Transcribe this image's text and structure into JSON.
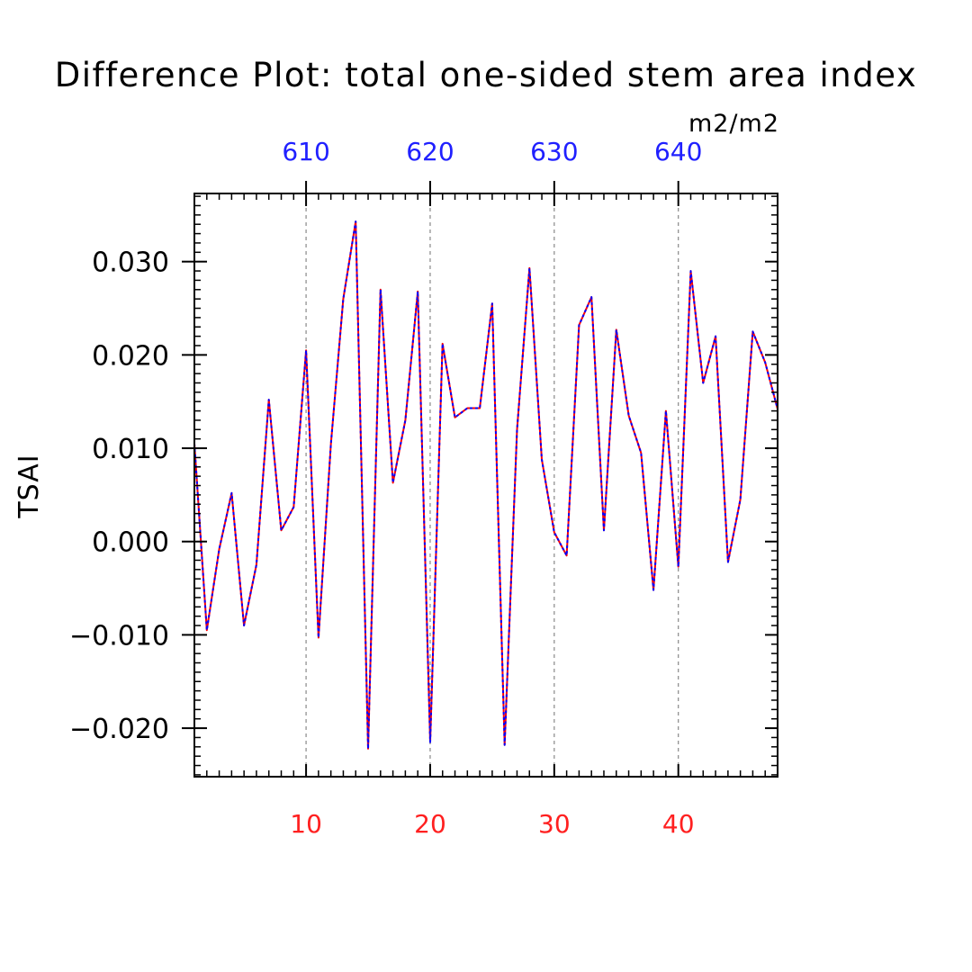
{
  "chart_data": {
    "type": "line",
    "title": "Difference Plot: total one-sided stem area index",
    "units": "m2/m2",
    "ylabel": "TSAI",
    "xlabel": "",
    "xlim": [
      1,
      48
    ],
    "ylim": [
      -0.0252,
      0.0373
    ],
    "bottom_ticks": [
      "10",
      "20",
      "30",
      "40"
    ],
    "bottom_tick_values": [
      10,
      20,
      30,
      40
    ],
    "top_ticks": [
      "610",
      "620",
      "630",
      "640"
    ],
    "top_tick_values": [
      10,
      20,
      30,
      40
    ],
    "y_ticks": [
      "−0.020",
      "−0.010",
      "0.000",
      "0.010",
      "0.020",
      "0.030"
    ],
    "y_tick_values": [
      -0.02,
      -0.01,
      0.0,
      0.01,
      0.02,
      0.03
    ],
    "grid": "vertical dashed at labeled x ticks",
    "x": [
      1,
      2,
      3,
      4,
      5,
      6,
      7,
      8,
      9,
      10,
      11,
      12,
      13,
      14,
      15,
      16,
      17,
      18,
      19,
      20,
      21,
      22,
      23,
      24,
      25,
      26,
      27,
      28,
      29,
      30,
      31,
      32,
      33,
      34,
      35,
      36,
      37,
      38,
      39,
      40,
      41,
      42,
      43,
      44,
      45,
      46,
      47,
      48
    ],
    "series": [
      {
        "color": "#ff0000",
        "style": "solid",
        "values": [
          0.0105,
          -0.0095,
          -0.0008,
          0.0052,
          -0.009,
          -0.0025,
          0.0152,
          0.0012,
          0.0037,
          0.0205,
          -0.0103,
          0.0105,
          0.026,
          0.0343,
          -0.0222,
          0.027,
          0.0063,
          0.013,
          0.0268,
          -0.0215,
          0.0212,
          0.0133,
          0.0143,
          0.0143,
          0.0255,
          -0.0218,
          0.012,
          0.0293,
          0.0088,
          0.001,
          -0.0015,
          0.0232,
          0.0262,
          0.0012,
          0.0227,
          0.0135,
          0.0095,
          -0.0052,
          0.014,
          -0.0027,
          0.029,
          0.017,
          0.022,
          -0.0022,
          0.0045,
          0.0225,
          0.0192,
          0.0142
        ]
      },
      {
        "color": "#0000ff",
        "style": "dashed",
        "values": [
          0.0105,
          -0.0095,
          -0.0008,
          0.0052,
          -0.009,
          -0.0025,
          0.0152,
          0.0012,
          0.0037,
          0.0205,
          -0.0103,
          0.0105,
          0.026,
          0.0343,
          -0.0222,
          0.027,
          0.0063,
          0.013,
          0.0268,
          -0.0215,
          0.0212,
          0.0133,
          0.0143,
          0.0143,
          0.0255,
          -0.0218,
          0.012,
          0.0293,
          0.0088,
          0.001,
          -0.0015,
          0.0232,
          0.0262,
          0.0012,
          0.0227,
          0.0135,
          0.0095,
          -0.0052,
          0.014,
          -0.0027,
          0.029,
          0.017,
          0.022,
          -0.0022,
          0.0045,
          0.0225,
          0.0192,
          0.0142
        ]
      }
    ],
    "colors": {
      "axis": "#000000",
      "bottom_tick_label": "#ff2020",
      "top_tick_label": "#2020ff",
      "grid": "#888888"
    }
  }
}
